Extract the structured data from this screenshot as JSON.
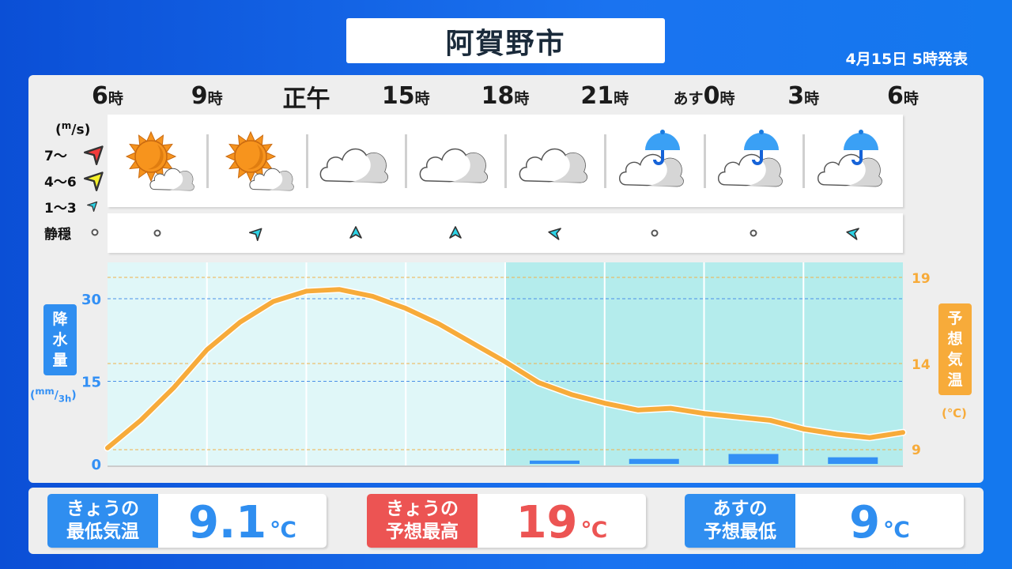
{
  "title": "阿賀野市",
  "issued": "4月15日 5時発表",
  "times": [
    {
      "n": "6",
      "s": "時"
    },
    {
      "n": "9",
      "s": "時"
    },
    {
      "n": "正午",
      "s": ""
    },
    {
      "n": "15",
      "s": "時"
    },
    {
      "n": "18",
      "s": "時"
    },
    {
      "n": "21",
      "s": "時"
    },
    {
      "p": "あす",
      "n": "0",
      "s": "時"
    },
    {
      "n": "3",
      "s": "時"
    },
    {
      "n": "6",
      "s": "時"
    }
  ],
  "weather": [
    "sunny-then-cloudy",
    "sunny-then-cloudy",
    "cloudy",
    "cloudy",
    "cloudy",
    "cloudy-with-rain",
    "cloudy-with-rain",
    "cloudy-with-rain"
  ],
  "wind_legend": {
    "unit": "(m/s)",
    "items": [
      {
        "label": "7〜",
        "color": "#f23b3b"
      },
      {
        "label": "4〜6",
        "color": "#f5f02a"
      },
      {
        "label": "1〜3",
        "color": "#2cd3e6"
      },
      {
        "label": "静穏",
        "color": "calm"
      }
    ]
  },
  "wind": [
    {
      "speed": "calm"
    },
    {
      "speed": "1-3",
      "toward_deg": 225
    },
    {
      "speed": "1-3",
      "toward_deg": 180
    },
    {
      "speed": "1-3",
      "toward_deg": 180
    },
    {
      "speed": "1-3",
      "toward_deg": 100
    },
    {
      "speed": "calm"
    },
    {
      "speed": "calm"
    },
    {
      "speed": "1-3",
      "toward_deg": 100
    }
  ],
  "chart_data": {
    "type": "line+bar",
    "precip_axis": {
      "label": "降水量",
      "unit": "(mm/3h)",
      "ticks": [
        "0",
        "15",
        "30"
      ],
      "range": [
        0,
        37
      ]
    },
    "temp_axis": {
      "label": "予想気温",
      "unit": "(℃)",
      "ticks": [
        "9",
        "14",
        "19"
      ],
      "range": [
        8,
        20
      ]
    },
    "precip_mm_3h": [
      0,
      0,
      0,
      0,
      0.6,
      0.9,
      1.8,
      1.2
    ],
    "temperature_hourly": [
      9.1,
      10.7,
      12.6,
      14.8,
      16.4,
      17.6,
      18.2,
      18.3,
      17.9,
      17.2,
      16.3,
      15.2,
      14.1,
      12.9,
      12.2,
      11.7,
      11.3,
      11.4,
      11.1,
      10.9,
      10.7,
      10.2,
      9.9,
      9.7,
      10.0
    ],
    "colors": {
      "temp": "#f7ab3a",
      "precip": "#3390f5",
      "day_bg": "#e0f7f8",
      "night_bg": "#b4ecec"
    }
  },
  "cards": [
    {
      "l1": "きょうの",
      "l2": "最低気温",
      "value": "9.1",
      "unit": "℃",
      "color": "#2f8ef0"
    },
    {
      "l1": "きょうの",
      "l2": "予想最高",
      "value": "19",
      "unit": "℃",
      "color": "#ec5453"
    },
    {
      "l1": "あすの",
      "l2": "予想最低",
      "value": "9",
      "unit": "℃",
      "color": "#2f8ef0"
    }
  ]
}
